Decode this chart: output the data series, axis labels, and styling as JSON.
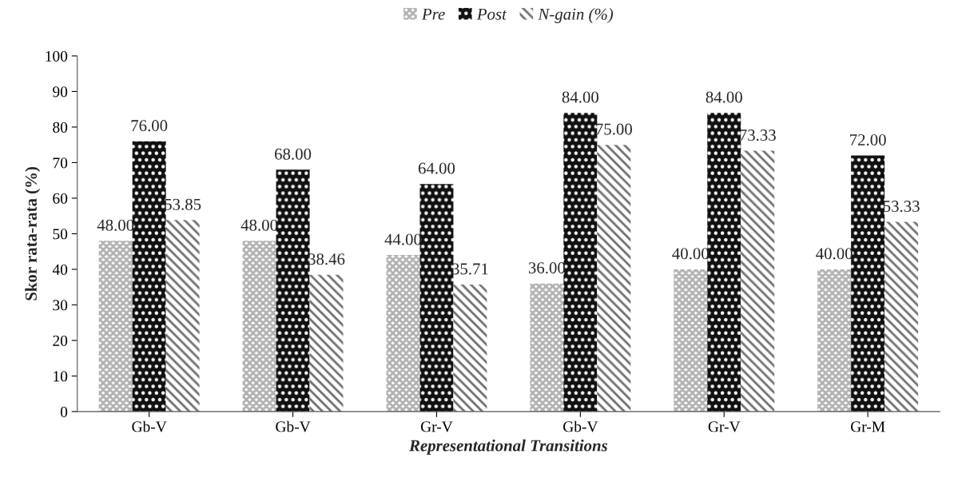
{
  "chart_data": {
    "type": "bar",
    "xlabel": "Representational Transitions",
    "ylabel": "Skor rata-rata (%)",
    "categories": [
      "Gb-V",
      "Gb-V",
      "Gr-V",
      "Gb-V",
      "Gr-V",
      "Gr-M"
    ],
    "series": [
      {
        "name": "Pre",
        "color": "#b0b0b0",
        "values": [
          48,
          48,
          44,
          36,
          40,
          40
        ],
        "value_labels": [
          "48.00",
          "48.00",
          "44.00",
          "36.00",
          "40.00",
          "40.00"
        ]
      },
      {
        "name": "Post",
        "color": "#111111",
        "values": [
          76,
          68,
          64,
          84,
          84,
          72
        ],
        "value_labels": [
          "76.00",
          "68.00",
          "64.00",
          "84.00",
          "84.00",
          "72.00"
        ]
      },
      {
        "name": "N-gain (%)",
        "color": "#707070",
        "values": [
          53.85,
          38.46,
          35.71,
          75,
          73.33,
          53.33
        ],
        "value_labels": [
          "53.85",
          "38.46",
          "35.71",
          "75.00",
          "73.33",
          "53.33"
        ]
      }
    ],
    "ylim": [
      0,
      100
    ],
    "yticks": [
      0,
      10,
      20,
      30,
      40,
      50,
      60,
      70,
      80,
      90,
      100
    ],
    "grid": false,
    "legend": "top"
  }
}
